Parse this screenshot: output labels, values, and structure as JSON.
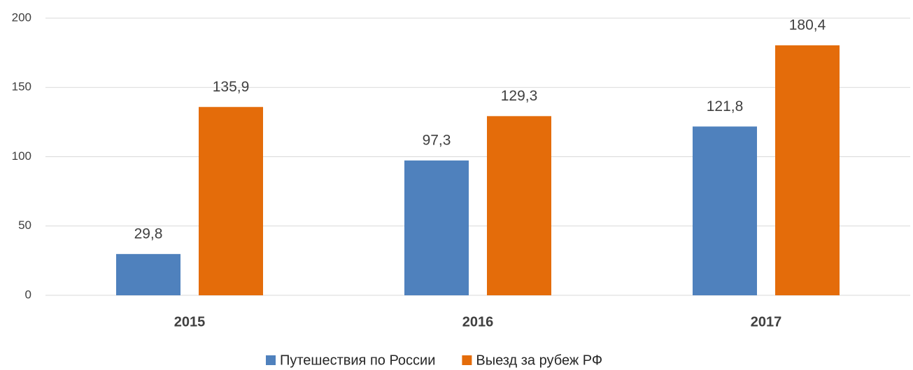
{
  "chart_data": {
    "type": "bar",
    "categories": [
      "2015",
      "2016",
      "2017"
    ],
    "series": [
      {
        "name": "Путешествия по России",
        "color": "#4f81bd",
        "values": [
          29.8,
          97.3,
          121.8
        ],
        "value_labels": [
          "29,8",
          "97,3",
          "121,8"
        ]
      },
      {
        "name": "Выезд за рубеж РФ",
        "color": "#e46c0a",
        "values": [
          135.9,
          129.3,
          180.4
        ],
        "value_labels": [
          "135,9",
          "129,3",
          "180,4"
        ]
      }
    ],
    "ylim": [
      0,
      200
    ],
    "yticks": [
      0,
      50,
      100,
      150,
      200
    ],
    "grid": true,
    "legend": "bottom"
  }
}
